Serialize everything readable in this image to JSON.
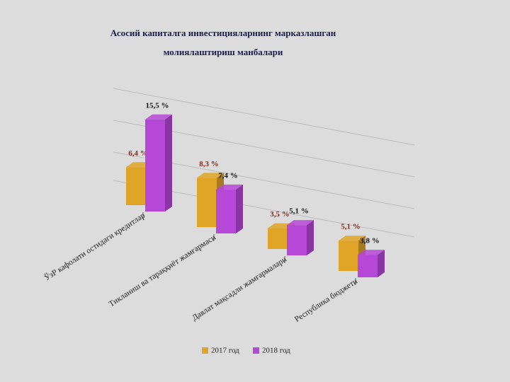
{
  "chart_data": {
    "type": "bar3d",
    "title": [
      "Асосий капиталга инвестицияларнинг марказлашган",
      "молиялаштириш манбалари"
    ],
    "categories": [
      "ЎзР кафолати остидаги кредитлар",
      "Тикланиш ва тараққиёт жамғармаси",
      "Давлат мақсадли жамғармалари",
      "Республика бюджети"
    ],
    "series": [
      {
        "name": "2017 год",
        "color": "#e0a526",
        "label_color": "#8b2a1a",
        "values": [
          6.4,
          8.3,
          3.5,
          5.1
        ],
        "value_labels": [
          "6,4 %",
          "8,3 %",
          "3,5 %",
          "5,1 %"
        ]
      },
      {
        "name": "2018 год",
        "color": "#b548d6",
        "label_color": "#111111",
        "values": [
          15.5,
          7.4,
          5.1,
          3.8
        ],
        "value_labels": [
          "15,5 %",
          "7,4 %",
          "5,1 %",
          "3,8 %"
        ]
      }
    ]
  }
}
